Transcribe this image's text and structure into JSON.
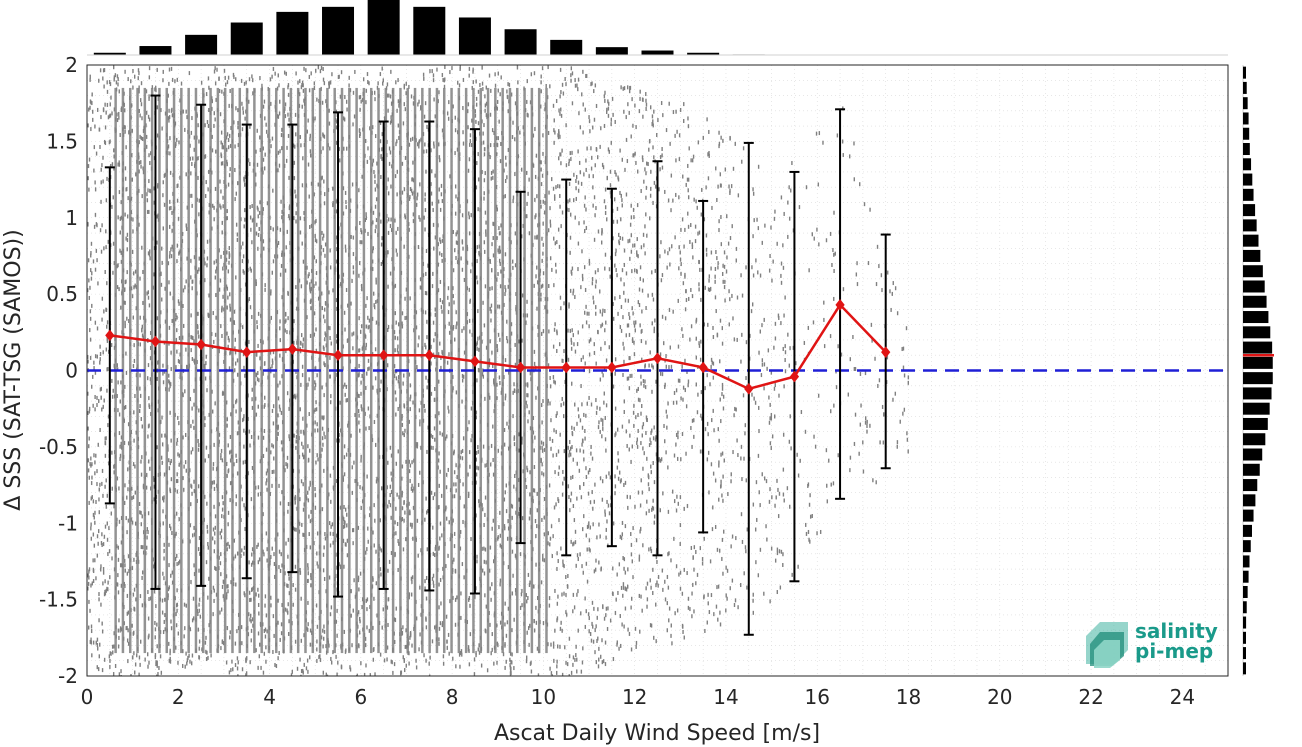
{
  "chart_data": [
    {
      "type": "scatter",
      "xlabel": "Ascat Daily Wind Speed [m/s]",
      "ylabel": "Δ SSS (SAT-TSG (SAMOS))",
      "xlim": [
        0,
        25
      ],
      "ylim": [
        -2,
        2
      ],
      "x_ticks": [
        0,
        2,
        4,
        6,
        8,
        10,
        12,
        14,
        16,
        18,
        20,
        22,
        24
      ],
      "y_ticks": [
        2,
        1.5,
        1,
        0.5,
        0,
        -0.5,
        -1,
        -1.5,
        -2
      ],
      "x_tick_labels": [
        "0",
        "2",
        "4",
        "6",
        "8",
        "10",
        "12",
        "14",
        "16",
        "18",
        "20",
        "22",
        "24"
      ],
      "y_tick_labels": [
        "2",
        "1.5",
        "1",
        "0.5",
        "0",
        "-0.5",
        "-1",
        "-1.5",
        "-2"
      ],
      "grid": true,
      "reference_line": {
        "y": 0,
        "style": "dashed",
        "color": "#1f1fd6"
      },
      "scatter_color": "#808080",
      "mean_line_color": "#e01414",
      "bin_stats": {
        "x": [
          0.5,
          1.5,
          2.5,
          3.5,
          4.5,
          5.5,
          6.5,
          7.5,
          8.5,
          9.5,
          10.5,
          11.5,
          12.5,
          13.5,
          14.5,
          15.5,
          16.5,
          17.5
        ],
        "mean": [
          0.23,
          0.19,
          0.17,
          0.12,
          0.14,
          0.1,
          0.1,
          0.1,
          0.06,
          0.02,
          0.02,
          0.02,
          0.08,
          0.02,
          -0.12,
          -0.04,
          0.43,
          0.12
        ],
        "upper": [
          1.33,
          1.8,
          1.74,
          1.61,
          1.61,
          1.69,
          1.63,
          1.63,
          1.58,
          1.17,
          1.25,
          1.19,
          1.37,
          1.11,
          1.49,
          1.3,
          1.71,
          0.89
        ],
        "lower": [
          -0.87,
          -1.43,
          -1.41,
          -1.36,
          -1.32,
          -1.48,
          -1.43,
          -1.44,
          -1.46,
          -1.13,
          -1.21,
          -1.15,
          -1.21,
          -1.06,
          -1.73,
          -1.38,
          -0.84,
          -0.64
        ]
      },
      "scatter_extent": [
        {
          "x": 0,
          "max": 2,
          "min": -2
        },
        {
          "x": 10.6,
          "max": 2,
          "min": -2
        },
        {
          "x": 12.6,
          "max": 1.8,
          "min": -1.8
        },
        {
          "x": 14,
          "max": 1.7,
          "min": -1.7
        },
        {
          "x": 15,
          "max": 1.2,
          "min": -1.5
        },
        {
          "x": 16.5,
          "max": 1.8,
          "min": -0.9
        },
        {
          "x": 18,
          "max": 0.3,
          "min": -0.6
        }
      ]
    },
    {
      "type": "bar",
      "placement": "top",
      "x": [
        0.5,
        1.5,
        2.5,
        3.5,
        4.5,
        5.5,
        6.5,
        7.5,
        8.5,
        9.5,
        10.5,
        11.5,
        12.5,
        13.5,
        14.5
      ],
      "values": [
        0.04,
        0.16,
        0.36,
        0.58,
        0.77,
        0.86,
        1.0,
        0.86,
        0.67,
        0.46,
        0.27,
        0.14,
        0.08,
        0.04,
        0.01
      ],
      "color": "#000000"
    },
    {
      "type": "bar",
      "placement": "right",
      "orientation": "horizontal",
      "y": [
        1.95,
        1.85,
        1.75,
        1.65,
        1.55,
        1.45,
        1.35,
        1.25,
        1.15,
        1.05,
        0.95,
        0.85,
        0.75,
        0.65,
        0.55,
        0.45,
        0.35,
        0.25,
        0.15,
        0.05,
        -0.05,
        -0.15,
        -0.25,
        -0.35,
        -0.45,
        -0.55,
        -0.65,
        -0.75,
        -0.85,
        -0.95,
        -1.05,
        -1.15,
        -1.25,
        -1.35,
        -1.45,
        -1.55,
        -1.65,
        -1.75,
        -1.85,
        -1.95
      ],
      "values": [
        0.08,
        0.12,
        0.15,
        0.18,
        0.2,
        0.22,
        0.26,
        0.3,
        0.34,
        0.39,
        0.44,
        0.5,
        0.56,
        0.64,
        0.7,
        0.76,
        0.82,
        0.88,
        0.94,
        0.96,
        0.96,
        0.92,
        0.86,
        0.8,
        0.72,
        0.62,
        0.54,
        0.46,
        0.4,
        0.34,
        0.29,
        0.25,
        0.21,
        0.18,
        0.15,
        0.12,
        0.1,
        0.08,
        0.06,
        0.05
      ],
      "median_line": {
        "y": 0.1,
        "color": "#e01414"
      },
      "color": "#000000"
    }
  ],
  "logo": {
    "line1": "salinity",
    "line2": "pi-mep",
    "color": "#1a9a8a"
  }
}
